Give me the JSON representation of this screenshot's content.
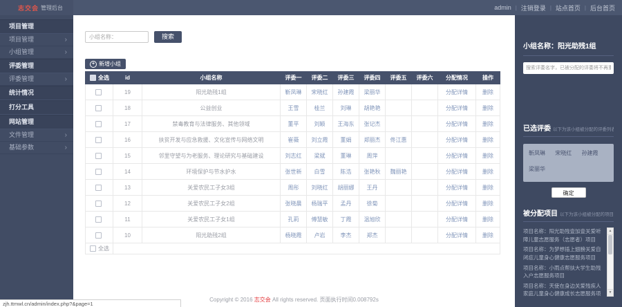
{
  "topbar": {
    "logo_red": "志交会",
    "logo_suffix": "管理后台",
    "user": "admin",
    "separator": "|",
    "links": [
      "注销登录",
      "站点首页",
      "后台首页"
    ]
  },
  "sidebar": {
    "chevron": "›",
    "items": [
      {
        "label": "项目管理",
        "type": "header"
      },
      {
        "label": "项目管理",
        "type": "sub"
      },
      {
        "label": "小组管理",
        "type": "sub"
      },
      {
        "label": "评委管理",
        "type": "header"
      },
      {
        "label": "评委管理",
        "type": "sub"
      },
      {
        "label": "统计情况",
        "type": "header"
      },
      {
        "label": "打分工具",
        "type": "header"
      },
      {
        "label": "网站管理",
        "type": "header"
      },
      {
        "label": "文件管理",
        "type": "sub"
      },
      {
        "label": "基础参数",
        "type": "sub"
      }
    ]
  },
  "search": {
    "placeholder": "小组名称：",
    "button": "搜索"
  },
  "toolbar": {
    "add_icon": "+",
    "add_button": "新增小组"
  },
  "table": {
    "select_all": "全选",
    "footer_select_all": "全选",
    "headers": [
      "全选",
      "id",
      "小组名称",
      "评委一",
      "评委二",
      "评委三",
      "评委四",
      "评委五",
      "评委六",
      "分配情况",
      "操作"
    ],
    "rows": [
      {
        "id": "19",
        "name": "阳光助残1组",
        "judges": [
          "靳凤琳",
          "宋晓红",
          "孙建霞",
          "梁丽华",
          "",
          ""
        ],
        "detail": "分配详情",
        "action": "删除"
      },
      {
        "id": "18",
        "name": "公益创业",
        "judges": [
          "王雪",
          "桂兰",
          "刘琳",
          "胡艳艳",
          "",
          ""
        ],
        "detail": "分配详情",
        "action": "删除"
      },
      {
        "id": "17",
        "name": "禁毒教育与法律服务、其他领域",
        "judges": [
          "董平",
          "刘颖",
          "王海东",
          "张记杰",
          "",
          ""
        ],
        "detail": "分配详情",
        "action": "删除"
      },
      {
        "id": "16",
        "name": "扶贫开发与应急救援、文化宣传与网络文明",
        "judges": [
          "崔薇",
          "刘立霞",
          "董娟",
          "郑丽杰",
          "佟江惠",
          ""
        ],
        "detail": "分配详情",
        "action": "删除"
      },
      {
        "id": "15",
        "name": "邻里守望与为老服务、理论研究与基础建设",
        "judges": [
          "刘志红",
          "梁斌",
          "董琳",
          "周萍",
          "",
          ""
        ],
        "detail": "分配详情",
        "action": "删除"
      },
      {
        "id": "14",
        "name": "环境保护与节水护水",
        "judges": [
          "张世新",
          "白雪",
          "陈浩",
          "张艳秋",
          "魏丽艳",
          ""
        ],
        "detail": "分配详情",
        "action": "删除"
      },
      {
        "id": "13",
        "name": "关爱农民工子女3组",
        "judges": [
          "周彤",
          "刘晓红",
          "胡丽娜",
          "王丹",
          "",
          ""
        ],
        "detail": "分配详情",
        "action": "删除"
      },
      {
        "id": "12",
        "name": "关爱农民工子女2组",
        "judges": [
          "张晓晨",
          "杨瑞平",
          "孟丹",
          "徐菊",
          "",
          ""
        ],
        "detail": "分配详情",
        "action": "删除"
      },
      {
        "id": "11",
        "name": "关爱农民工子女1组",
        "judges": [
          "孔莉",
          "傅慧敏",
          "丁霞",
          "温旭欣",
          "",
          ""
        ],
        "detail": "分配详情",
        "action": "删除"
      },
      {
        "id": "10",
        "name": "阳光助残2组",
        "judges": [
          "杨晓霞",
          "卢岩",
          "李杰",
          "郑杰",
          "",
          ""
        ],
        "detail": "分配详情",
        "action": "删除"
      }
    ]
  },
  "panel": {
    "title_label": "小组名称：",
    "title_value": "阳光助残1组",
    "search_placeholder": "搜索评委名字，已被分配的评委将不再重复显示",
    "selected_title": "已选评委",
    "selected_hint": "以下为该小组被分配的评委列表",
    "selected_judges": [
      "靳凤琳",
      "宋晓红",
      "孙建霞",
      "梁丽华"
    ],
    "confirm": "确定",
    "assigned_title": "被分配项目",
    "assigned_hint": "以下为该小组被分配的项目列表",
    "scroll_up": "▲",
    "scroll_down": "▼",
    "projects": [
      "项目名称：阳光助残壹加壹关爱听障儿童志愿服务（志愿者）项目",
      "项目名称：为梦想插上翅膀关爱自闭症儿童身心健康志愿服务项目",
      "项目名称：小雨点帮扶大学生助残入户志愿服务项目",
      "项目名称：天使在身边关爱残疾人家庭儿童身心健康成长志愿服务项目"
    ]
  },
  "footer": {
    "copyright_prefix": "Copyright © 2016 ",
    "brand": "志交会",
    "copyright_suffix": " All rights reserved. 页面执行时间0.008792s"
  },
  "statusbar": {
    "url": "zjh.ttmwl.cn/admin/index.php?&page=1"
  },
  "colors": {
    "navy": "#46516b",
    "panel": "#3e4961",
    "link_blue": "#8095ba",
    "brand_red": "#e4393c",
    "logo_red": "#e2574c"
  }
}
